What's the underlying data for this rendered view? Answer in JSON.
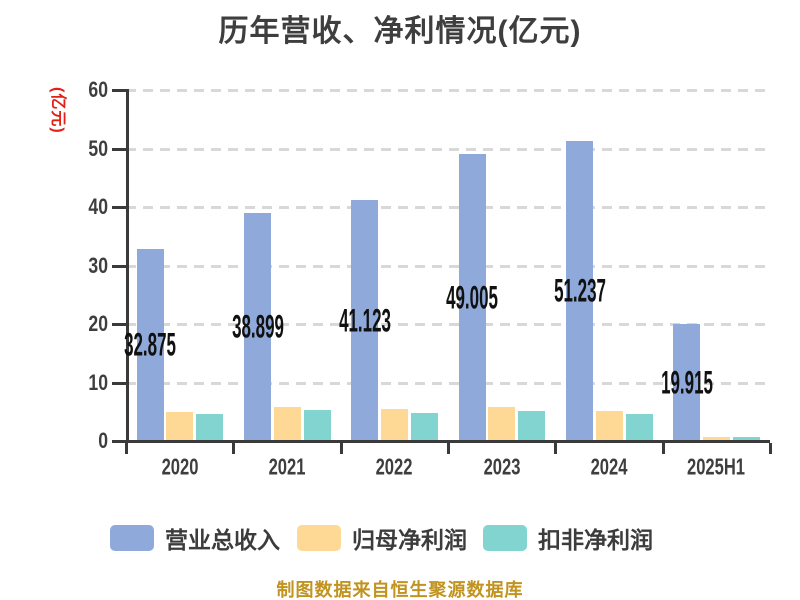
{
  "chart_data": {
    "type": "bar",
    "title": "历年营收、净利情况(亿元)",
    "ylabel": "(亿元)",
    "categories": [
      "2020",
      "2021",
      "2022",
      "2023",
      "2024",
      "2025H1"
    ],
    "y_ticks": [
      "0",
      "10",
      "20",
      "30",
      "40",
      "50",
      "60"
    ],
    "ylim": [
      0,
      60
    ],
    "grid": "horizontal-dashed",
    "legend_position": "bottom",
    "series": [
      {
        "name": "营业总收入",
        "color": "#8EA9DA",
        "values": [
          32.875,
          38.899,
          41.123,
          49.005,
          51.237,
          19.915
        ],
        "labels": [
          "32.875",
          "38.899",
          "41.123",
          "49.005",
          "51.237",
          "19.915"
        ]
      },
      {
        "name": "归母净利润",
        "color": "#FDD995",
        "values": [
          4.9,
          5.8,
          5.4,
          5.8,
          5.2,
          0.6
        ],
        "labels": []
      },
      {
        "name": "扣非净利润",
        "color": "#82D4D0",
        "values": [
          4.7,
          5.3,
          4.8,
          5.2,
          4.7,
          0.6
        ],
        "labels": []
      }
    ],
    "styles": {
      "background": "#FFFFFF",
      "title_color": "#3E3E3E",
      "axis_color": "#3A3A3A",
      "grid_color": "#D8D8D8",
      "tick_label_color": "#3E3E3E",
      "value_label_color": "#111111",
      "ylabel_color": "#E32017"
    }
  },
  "footer": {
    "text": "制图数据来自恒生聚源数据库",
    "color": "#C1931F"
  }
}
